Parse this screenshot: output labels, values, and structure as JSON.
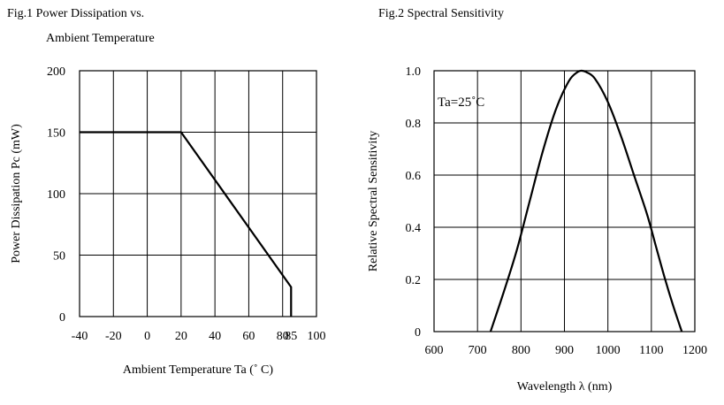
{
  "figures": {
    "fig1": {
      "title": "Fig.1 Power Dissipation vs.",
      "subtitle": "Ambient Temperature"
    },
    "fig2": {
      "title": "Fig.2 Spectral Sensitivity"
    }
  },
  "chart_data": [
    {
      "type": "line",
      "title": "Fig.1 Power Dissipation vs. Ambient Temperature",
      "xlabel": "Ambient Temperature Ta (˚ C)",
      "ylabel": "Power Dissipation Pc (mW)",
      "xlim": [
        -40,
        100
      ],
      "ylim": [
        0,
        200
      ],
      "x_ticks": [
        -40,
        -20,
        0,
        20,
        40,
        60,
        80,
        85,
        100
      ],
      "x_tick_labels": [
        "-40",
        "-20",
        "0",
        "20",
        "40",
        "60",
        "80",
        "85",
        "100"
      ],
      "y_ticks": [
        0,
        50,
        100,
        150,
        200
      ],
      "y_tick_labels": [
        "0",
        "50",
        "100",
        "150",
        "200"
      ],
      "x_gridlines": [
        -40,
        -20,
        0,
        20,
        40,
        60,
        80,
        100
      ],
      "y_gridlines": [
        0,
        50,
        100,
        150,
        200
      ],
      "grid": true,
      "series": [
        {
          "x": [
            -40,
            20,
            85,
            85
          ],
          "y": [
            150,
            150,
            24,
            0
          ]
        }
      ]
    },
    {
      "type": "line",
      "title": "Fig.2 Spectral Sensitivity",
      "xlabel": "Wavelength λ (nm)",
      "ylabel": "Relative Spectral Sensitivity",
      "annotation": "Ta=25˚C",
      "xlim": [
        600,
        1200
      ],
      "ylim": [
        0,
        1.0
      ],
      "x_ticks": [
        600,
        700,
        800,
        900,
        1000,
        1100,
        1200
      ],
      "x_tick_labels": [
        "600",
        "700",
        "800",
        "900",
        "1000",
        "1100",
        "1200"
      ],
      "y_ticks": [
        0,
        0.2,
        0.4,
        0.6,
        0.8,
        1.0
      ],
      "y_tick_labels": [
        "0",
        "0.2",
        "0.4",
        "0.6",
        "0.8",
        "1.0"
      ],
      "grid": true,
      "series": [
        {
          "x": [
            730,
            760,
            790,
            820,
            850,
            880,
            910,
            930,
            940,
            950,
            970,
            1000,
            1030,
            1060,
            1090,
            1110,
            1130,
            1150,
            1170
          ],
          "y": [
            0.0,
            0.15,
            0.31,
            0.5,
            0.69,
            0.85,
            0.96,
            0.995,
            1.0,
            0.995,
            0.97,
            0.88,
            0.75,
            0.6,
            0.45,
            0.33,
            0.21,
            0.1,
            0.0
          ]
        }
      ]
    }
  ]
}
